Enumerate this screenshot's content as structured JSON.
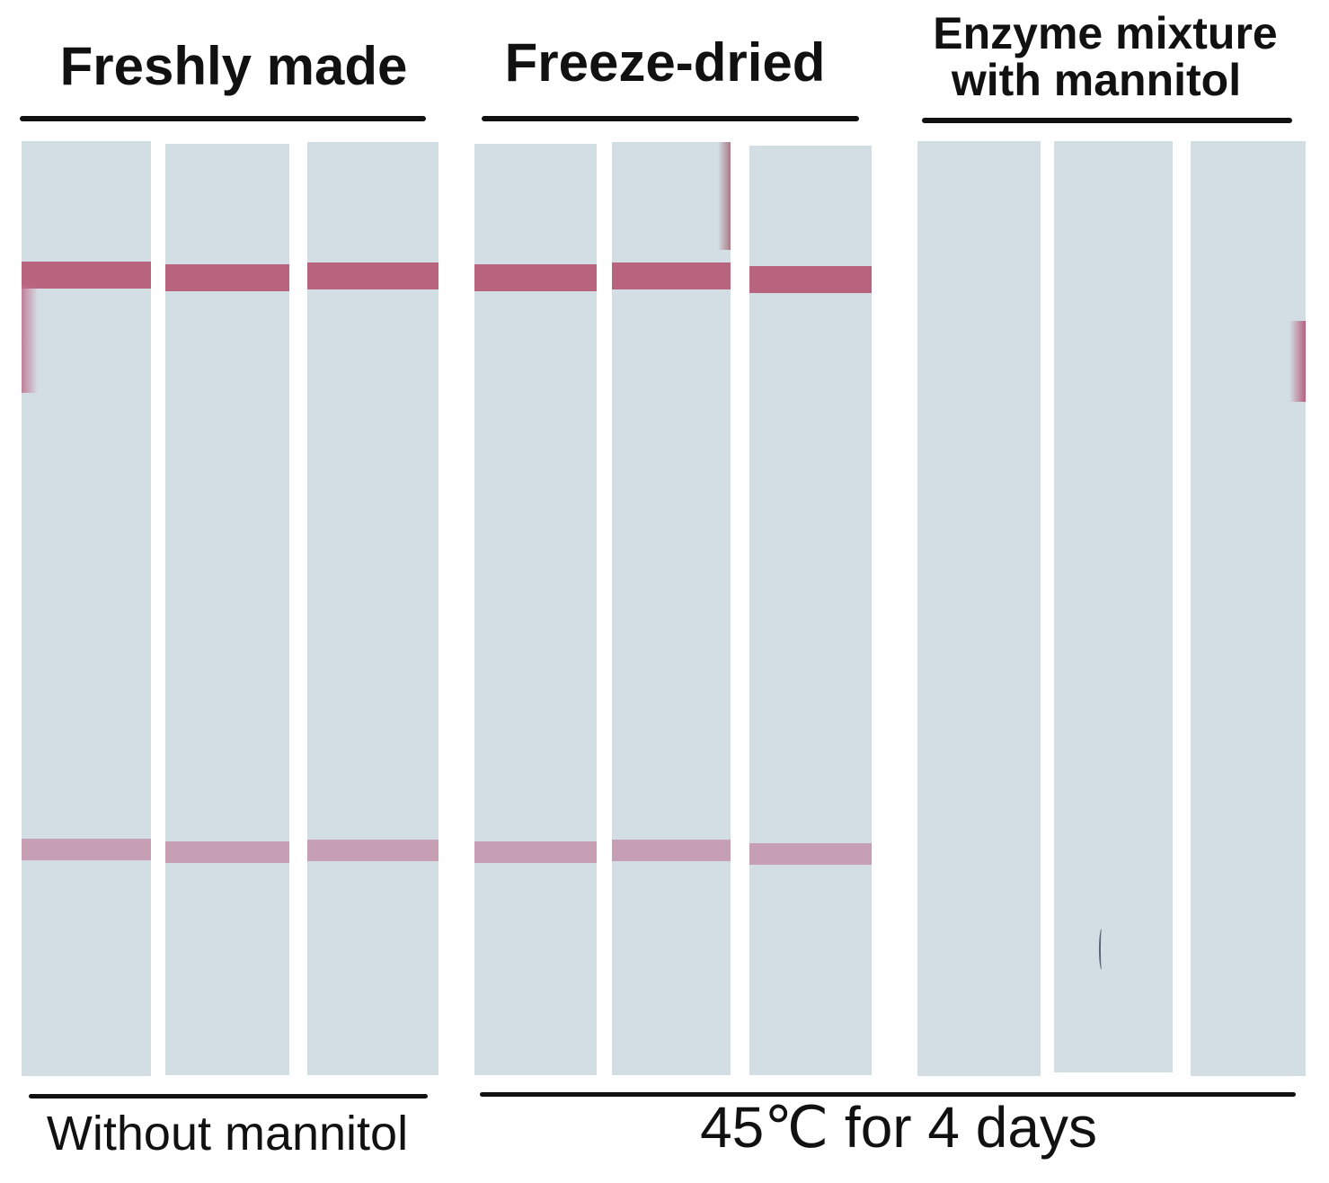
{
  "header": {
    "group1_label": "Freshly made",
    "group2_label": "Freeze-dried",
    "group3_label_line1": "Enzyme mixture",
    "group3_label_line2": "with mannitol"
  },
  "footer": {
    "left_label": "Without mannitol",
    "right_label": "45℃ for 4 days"
  },
  "strips": [
    {
      "group": "Freshly made",
      "control_line": true,
      "test_line": true
    },
    {
      "group": "Freshly made",
      "control_line": true,
      "test_line": true
    },
    {
      "group": "Freshly made",
      "control_line": true,
      "test_line": true
    },
    {
      "group": "Freeze-dried",
      "control_line": true,
      "test_line": true
    },
    {
      "group": "Freeze-dried",
      "control_line": true,
      "test_line": true
    },
    {
      "group": "Freeze-dried",
      "control_line": true,
      "test_line": true
    },
    {
      "group": "Enzyme mixture with mannitol",
      "control_line": false,
      "test_line": false
    },
    {
      "group": "Enzyme mixture with mannitol",
      "control_line": false,
      "test_line": false
    },
    {
      "group": "Enzyme mixture with mannitol",
      "control_line": false,
      "test_line": false
    }
  ],
  "colors": {
    "strip": "#d3dde4",
    "control_band": "#b8647f",
    "test_band": "#c494ab",
    "text": "#111111"
  }
}
